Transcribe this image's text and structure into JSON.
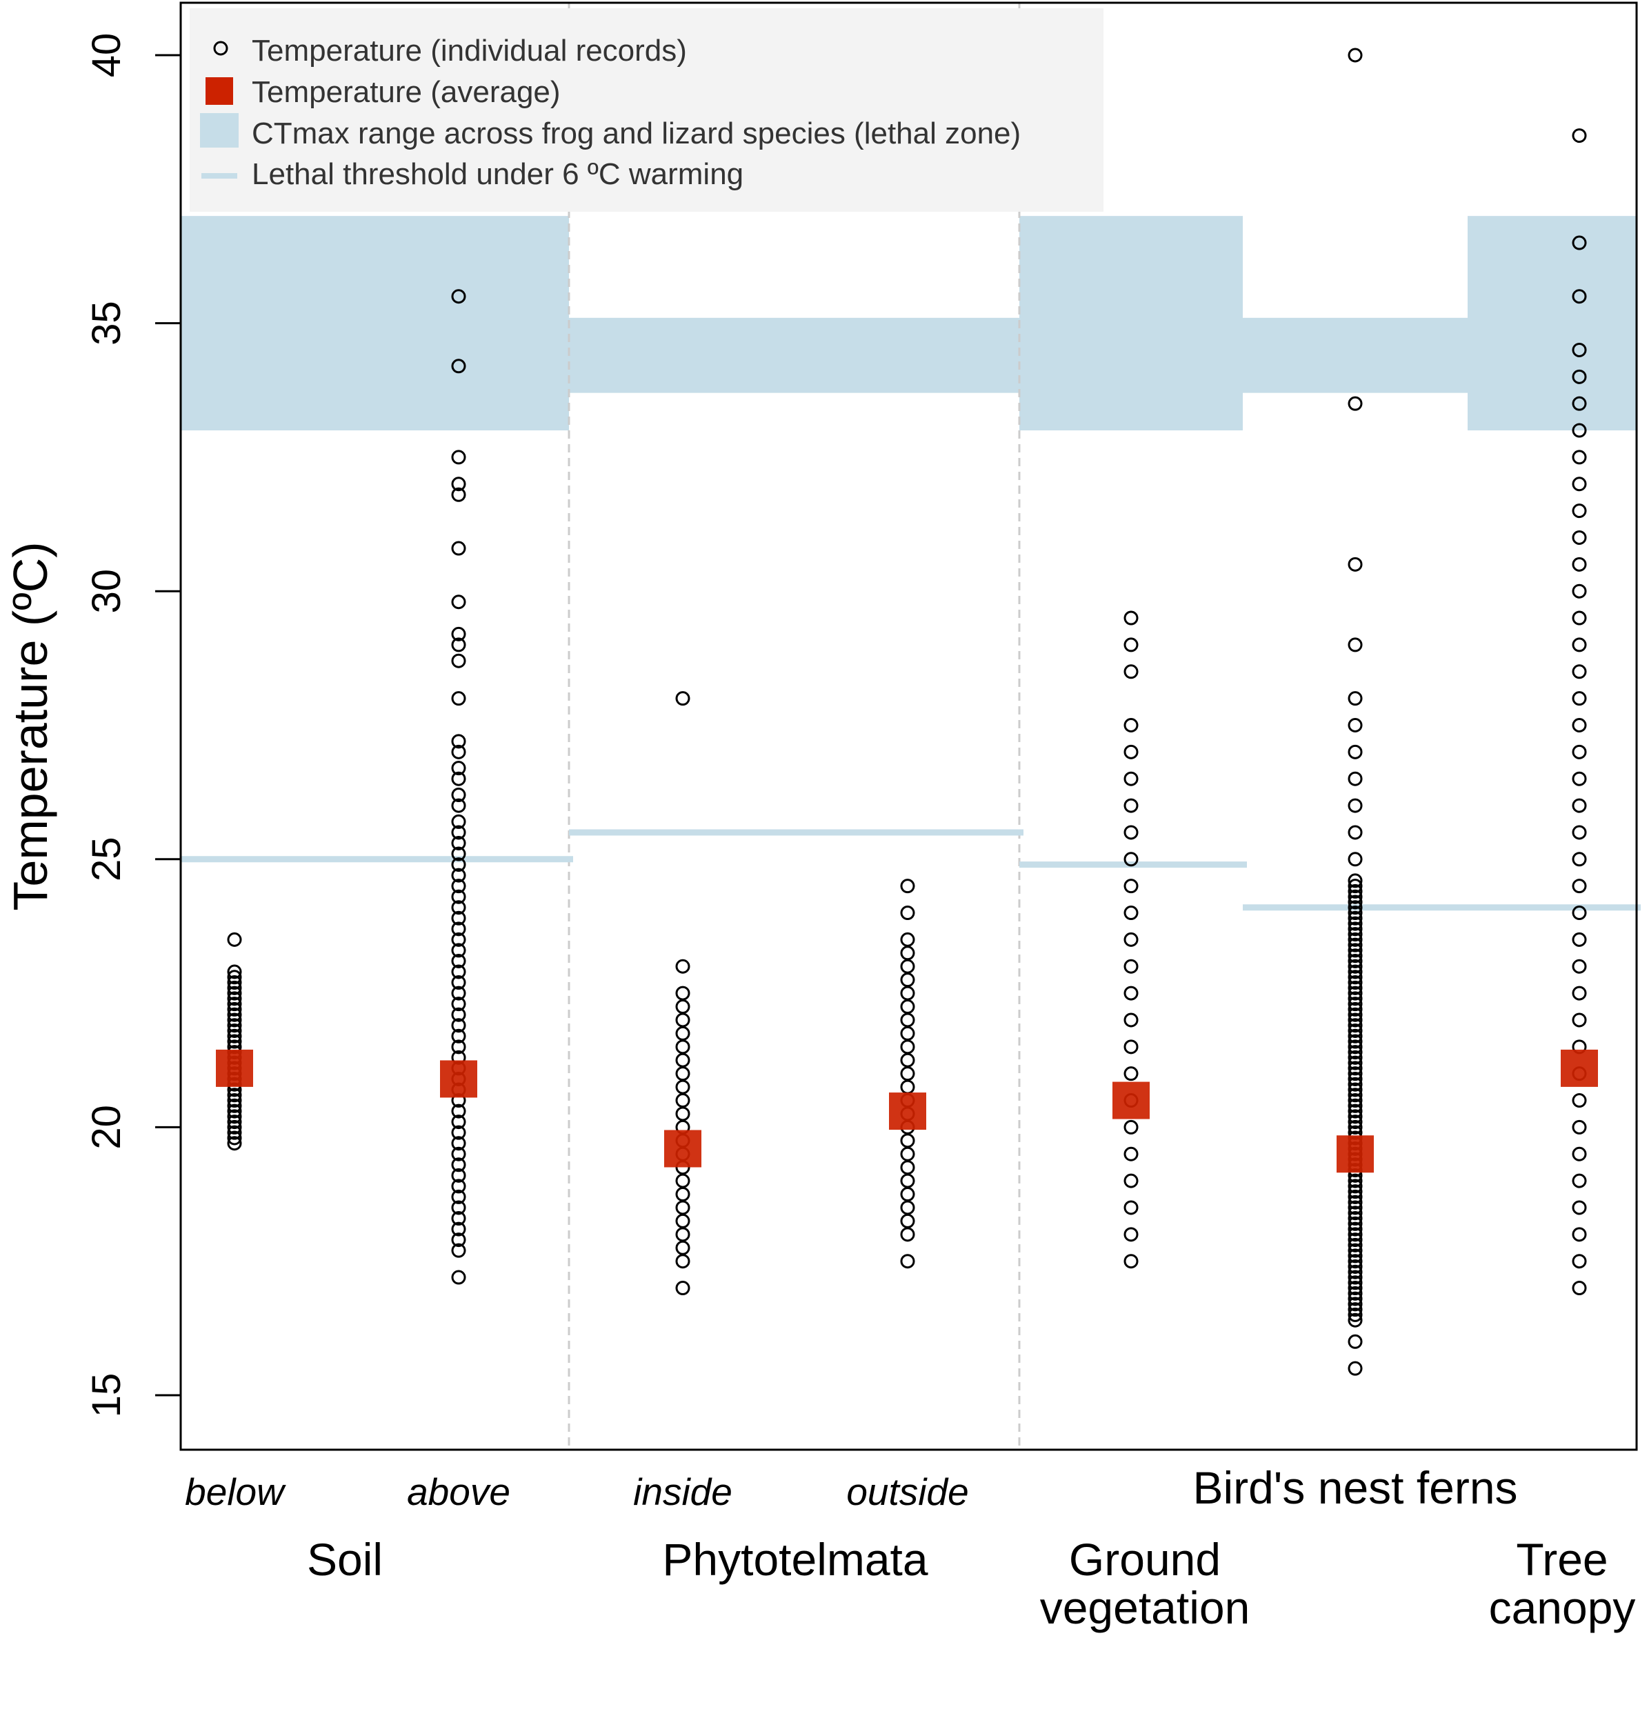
{
  "chart_data": {
    "type": "scatter",
    "ylabel": "Temperature (ºC)",
    "ylim": [
      14,
      41
    ],
    "yticks": [
      15,
      20,
      25,
      30,
      35,
      40
    ],
    "grid": false,
    "legend_position": "top-left",
    "legend": [
      {
        "key": "individual",
        "label": "Temperature (individual records)"
      },
      {
        "key": "average",
        "label": "Temperature (average)"
      },
      {
        "key": "ctmax",
        "label": "CTmax range across frog and lizard species (lethal zone)"
      },
      {
        "key": "threshold",
        "label": "Lethal threshold under 6 ºC warming"
      }
    ],
    "colors": {
      "average": "#cc2200",
      "ctmax": "#c6dde8",
      "threshold": "#c6dde8",
      "points": "#000000",
      "divider": "#cccccc",
      "legend_bg": "#f3f3f3"
    },
    "categories": [
      {
        "key": "soil_below",
        "label": "below",
        "mean": 21.1,
        "points": {
          "range": [
            19.7,
            22.9
          ],
          "step": 0.1
        },
        "outliers": [
          23.5
        ]
      },
      {
        "key": "soil_above",
        "label": "above",
        "mean": 20.9,
        "points": {
          "range": [
            17.7,
            25.8
          ],
          "step": 0.2
        },
        "outliers": [
          17.2,
          26.0,
          26.2,
          26.5,
          26.7,
          27.0,
          27.2,
          28.0,
          28.7,
          29.0,
          29.2,
          29.8,
          30.8,
          31.8,
          32.0,
          32.5,
          34.2,
          35.5
        ]
      },
      {
        "key": "phyto_inside",
        "label": "inside",
        "mean": 19.6,
        "points": {
          "range": [
            17.5,
            22.5
          ],
          "step": 0.25
        },
        "outliers": [
          17.0,
          23.0,
          28.0
        ]
      },
      {
        "key": "phyto_outside",
        "label": "outside",
        "mean": 20.3,
        "points": {
          "range": [
            18.0,
            23.5
          ],
          "step": 0.25
        },
        "outliers": [
          17.5,
          24.0,
          24.5
        ]
      },
      {
        "key": "fern_ground",
        "label": "",
        "mean": 20.5,
        "points": {
          "range": [
            18.0,
            26.5
          ],
          "step": 0.5
        },
        "outliers": [
          17.5,
          27.0,
          27.5,
          28.5,
          29.0,
          29.5
        ]
      },
      {
        "key": "fern_center",
        "label": "",
        "mean": 19.5,
        "points": {
          "range": [
            16.4,
            24.6
          ],
          "step": 0.1
        },
        "outliers": [
          15.5,
          16.0,
          25.0,
          25.5,
          26.0,
          26.5,
          27.0,
          27.5,
          28.0,
          29.0,
          30.5,
          33.5,
          40.0
        ]
      },
      {
        "key": "fern_canopy",
        "label": "",
        "mean": 21.1,
        "points": {
          "range": [
            17.5,
            34.5
          ],
          "step": 0.5
        },
        "outliers": [
          17.0,
          35.5,
          36.5,
          38.5
        ]
      }
    ],
    "ctmax_bands": [
      {
        "from_category": 0,
        "to_category": 1,
        "range": [
          33.0,
          37.0
        ]
      },
      {
        "from_category": 2,
        "to_category": 3,
        "range": [
          33.7,
          35.1
        ]
      },
      {
        "from_category": 4,
        "to_category": 4,
        "range": [
          33.0,
          37.0
        ]
      },
      {
        "from_category": 5,
        "to_category": 5,
        "range": [
          33.7,
          35.1
        ]
      },
      {
        "from_category": 6,
        "to_category": 6,
        "range": [
          33.0,
          37.0
        ]
      }
    ],
    "thresholds": [
      {
        "from_category": 0,
        "to_category": 1,
        "value": 25.0
      },
      {
        "from_category": 2,
        "to_category": 3,
        "value": 25.5
      },
      {
        "from_category": 4,
        "to_category": 4,
        "value": 24.9
      },
      {
        "from_category": 5,
        "to_category": 6,
        "value": 24.1
      }
    ],
    "groups": [
      {
        "label_lines": [
          "Soil"
        ],
        "categories": [
          0,
          1
        ]
      },
      {
        "label_lines": [
          "Phytotelmata"
        ],
        "categories": [
          2,
          3
        ]
      },
      {
        "label_lines": [
          "Bird's nest ferns"
        ],
        "categories": [
          4,
          6
        ],
        "position": "upper"
      },
      {
        "label_lines": [
          "Ground",
          "vegetation"
        ],
        "categories": [
          4
        ]
      },
      {
        "label_lines": [
          "Tree",
          "canopy"
        ],
        "categories": [
          6
        ]
      }
    ]
  }
}
